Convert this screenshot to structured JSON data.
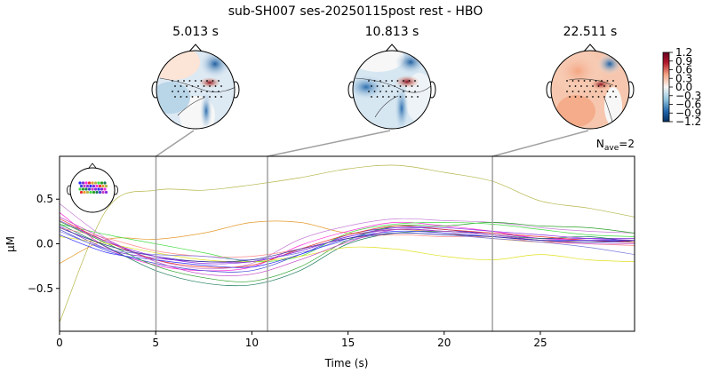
{
  "chart_data": {
    "type": "line",
    "title": "sub-SH007 ses-20250115post rest - HBO",
    "xlabel": "Time (s)",
    "ylabel": "µM",
    "annotation_prefix": "N",
    "annotation_sub": "ave",
    "annotation_value": "=2",
    "xlim": [
      0,
      29.9
    ],
    "ylim": [
      -0.98,
      0.98
    ],
    "xticks": [
      0,
      5,
      10,
      15,
      20,
      25
    ],
    "xtick_labels": [
      "0",
      "5",
      "10",
      "15",
      "20",
      "25"
    ],
    "yticks": [
      -0.5,
      0.0,
      0.5
    ],
    "ytick_labels": [
      "−0.5",
      "0.0",
      "0.5"
    ],
    "topomap_times": [
      5.013,
      10.813,
      22.511
    ],
    "topomap_labels": [
      "5.013 s",
      "10.813 s",
      "22.511 s"
    ],
    "colorbar": {
      "ticks": [
        1.2,
        0.9,
        0.6,
        0.3,
        0.0,
        -0.3,
        -0.6,
        -0.9,
        -1.2
      ],
      "tick_labels": [
        "1.2",
        "0.9",
        "0.6",
        "0.3",
        "0.0",
        "−0.3",
        "−0.6",
        "−0.9",
        "−1.2"
      ],
      "cmap": "RdBu_r"
    },
    "x": [
      0,
      2.5,
      5,
      7.5,
      10,
      12.5,
      15,
      17.5,
      20,
      22.5,
      25,
      27.5,
      29.9
    ],
    "series": [
      {
        "color": "#b5b54a",
        "values": [
          -0.88,
          0.4,
          0.6,
          0.6,
          0.66,
          0.74,
          0.84,
          0.88,
          0.8,
          0.7,
          0.48,
          0.4,
          0.3
        ]
      },
      {
        "color": "#e69a2e",
        "values": [
          -0.22,
          0.05,
          0.05,
          0.12,
          0.24,
          0.24,
          0.12,
          0.16,
          0.12,
          0.06,
          0.02,
          0.04,
          0.02
        ]
      },
      {
        "color": "#c77fd6",
        "values": [
          0.45,
          0.05,
          -0.18,
          -0.28,
          -0.22,
          0.05,
          0.2,
          0.28,
          0.26,
          0.24,
          0.18,
          0.14,
          0.12
        ]
      },
      {
        "color": "#ff2bd8",
        "values": [
          0.35,
          -0.05,
          -0.24,
          -0.3,
          -0.26,
          -0.02,
          0.14,
          0.24,
          0.2,
          0.14,
          0.06,
          0.04,
          0.02
        ]
      },
      {
        "color": "#7b2bd8",
        "values": [
          0.2,
          -0.06,
          -0.16,
          -0.2,
          -0.2,
          -0.08,
          0.08,
          0.16,
          0.14,
          0.12,
          0.06,
          0.06,
          0.06
        ]
      },
      {
        "color": "#4040d8",
        "values": [
          0.16,
          -0.08,
          -0.22,
          -0.3,
          -0.3,
          -0.12,
          0.1,
          0.18,
          0.16,
          0.1,
          0.04,
          0.02,
          0.02
        ]
      },
      {
        "color": "#2aa02a",
        "values": [
          0.25,
          0.0,
          -0.25,
          -0.38,
          -0.42,
          -0.26,
          0.04,
          0.2,
          0.2,
          0.24,
          0.2,
          0.18,
          0.12
        ]
      },
      {
        "color": "#1a7a5a",
        "values": [
          0.22,
          -0.04,
          -0.3,
          -0.44,
          -0.46,
          -0.3,
          0.0,
          0.12,
          0.14,
          0.1,
          0.06,
          0.08,
          0.02
        ]
      },
      {
        "color": "#44dd44",
        "values": [
          0.22,
          0.1,
          0.0,
          -0.1,
          -0.2,
          -0.14,
          0.12,
          0.22,
          0.24,
          0.22,
          0.16,
          0.1,
          0.08
        ]
      },
      {
        "color": "#e0e020",
        "values": [
          0.08,
          0.0,
          -0.1,
          -0.18,
          -0.2,
          -0.14,
          -0.04,
          -0.06,
          -0.14,
          -0.18,
          -0.12,
          -0.18,
          -0.2
        ]
      },
      {
        "color": "#e83030",
        "values": [
          0.28,
          0.02,
          -0.18,
          -0.26,
          -0.24,
          -0.06,
          0.1,
          0.2,
          0.16,
          0.12,
          0.08,
          0.04,
          0.02
        ]
      },
      {
        "color": "#ff8c8c",
        "values": [
          0.18,
          0.06,
          -0.08,
          -0.14,
          -0.14,
          -0.06,
          0.06,
          0.1,
          0.08,
          0.08,
          0.02,
          0.0,
          -0.02
        ]
      },
      {
        "color": "#7a7ae0",
        "values": [
          0.14,
          -0.06,
          -0.12,
          -0.14,
          -0.18,
          -0.1,
          0.04,
          0.12,
          0.1,
          0.06,
          0.02,
          -0.04,
          -0.12
        ]
      },
      {
        "color": "#2b2bff",
        "values": [
          0.1,
          -0.1,
          -0.18,
          -0.24,
          -0.26,
          -0.12,
          0.06,
          0.14,
          0.12,
          0.08,
          0.04,
          0.04,
          0.04
        ]
      },
      {
        "color": "#c040c0",
        "values": [
          0.3,
          0.04,
          -0.2,
          -0.34,
          -0.34,
          -0.18,
          0.02,
          0.16,
          0.14,
          0.1,
          0.04,
          0.0,
          0.0
        ]
      },
      {
        "color": "#333399",
        "values": [
          0.18,
          -0.02,
          -0.14,
          -0.2,
          -0.18,
          -0.06,
          0.06,
          0.12,
          0.1,
          0.08,
          0.04,
          0.02,
          0.04
        ]
      },
      {
        "color": "#8a2be2",
        "values": [
          0.26,
          0.02,
          -0.14,
          -0.22,
          -0.2,
          -0.08,
          0.08,
          0.18,
          0.18,
          0.14,
          0.1,
          0.06,
          0.04
        ]
      }
    ]
  }
}
